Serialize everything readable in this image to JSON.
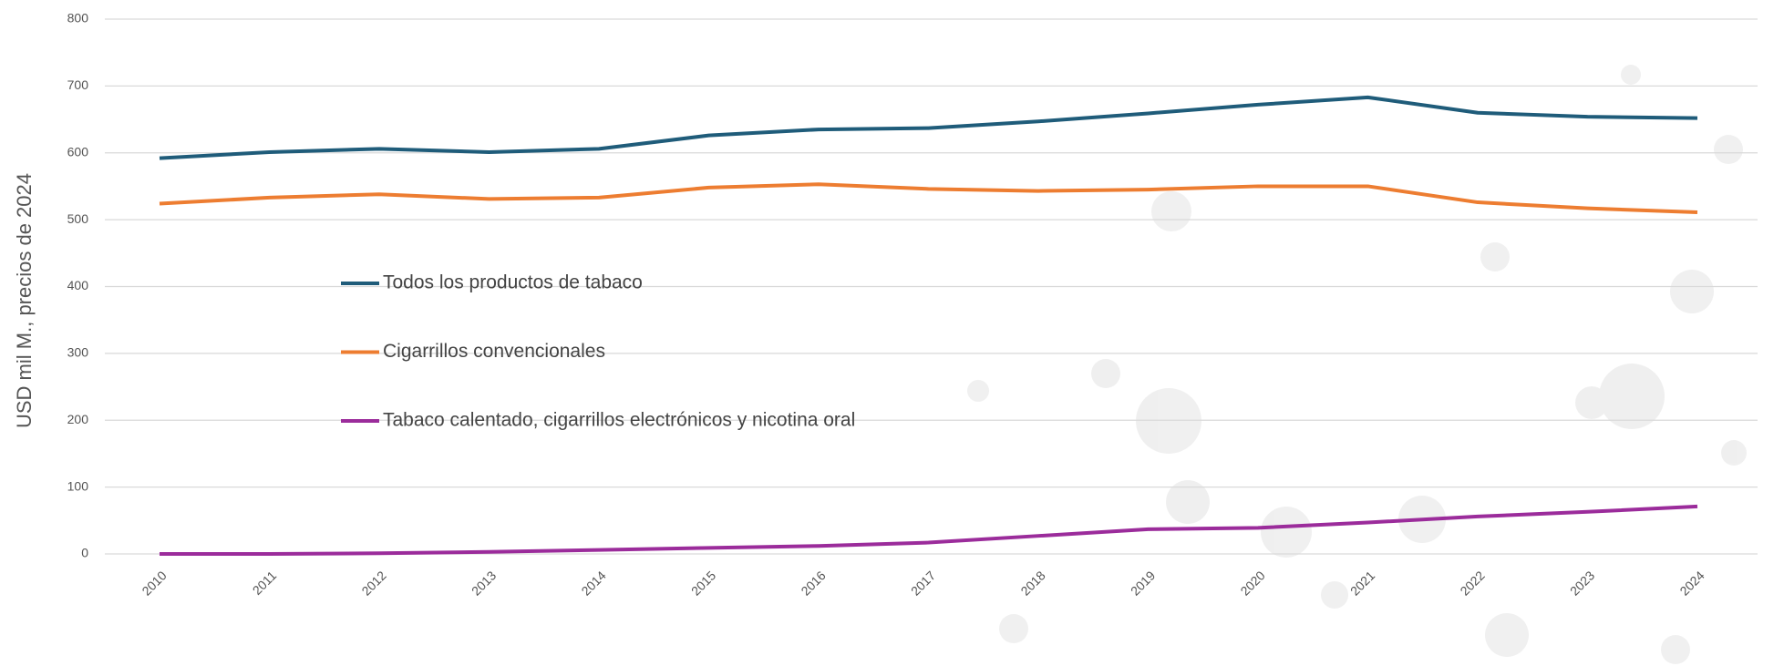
{
  "chart_data": {
    "type": "line",
    "y_label": "USD mil M., precios de  2024",
    "categories": [
      "2010",
      "2011",
      "2012",
      "2013",
      "2014",
      "2015",
      "2016",
      "2017",
      "2018",
      "2019",
      "2020",
      "2021",
      "2022",
      "2023",
      "2024"
    ],
    "series": [
      {
        "name": "Todos los productos de tabaco",
        "color": "#1f5c7a",
        "values": [
          592,
          601,
          606,
          601,
          606,
          626,
          635,
          637,
          647,
          659,
          672,
          683,
          660,
          654,
          652
        ]
      },
      {
        "name": "Cigarrillos convencionales",
        "color": "#ed7d31",
        "values": [
          524,
          533,
          538,
          531,
          533,
          548,
          553,
          546,
          543,
          545,
          550,
          550,
          526,
          517,
          511
        ]
      },
      {
        "name": "Tabaco calentado, cigarrillos electrónicos y nicotina oral",
        "color": "#9b2c9b",
        "values": [
          0,
          0,
          1,
          3,
          6,
          9,
          12,
          17,
          27,
          37,
          39,
          47,
          56,
          63,
          71
        ]
      }
    ],
    "ylim": [
      0,
      800
    ],
    "yticks": [
      0,
      100,
      200,
      300,
      400,
      500,
      600,
      700,
      800
    ],
    "grid": true
  }
}
